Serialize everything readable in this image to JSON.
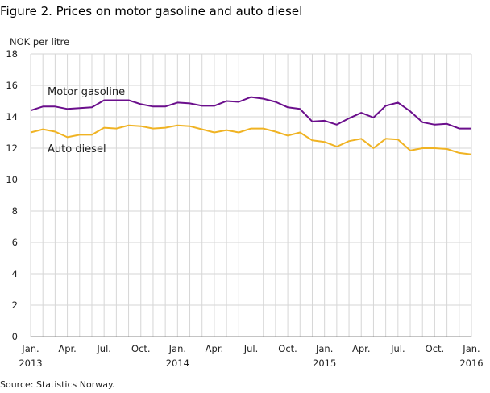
{
  "title": "Figure 2. Prices on motor gasoline and auto diesel",
  "source": "Source: Statistics Norway.",
  "chart_data": {
    "type": "line",
    "title": "Figure 2. Prices on motor gasoline and auto diesel",
    "ylabel": "NOK per litre",
    "xlabel": "",
    "ylim": [
      0,
      18
    ],
    "yticks": [
      0,
      2,
      4,
      6,
      8,
      10,
      12,
      14,
      16,
      18
    ],
    "x_start": "Jan. 2013",
    "x_end": "Jan. 2016",
    "xtick_labels": [
      "Jan.",
      "Apr.",
      "Jul.",
      "Oct.",
      "Jan.",
      "Apr.",
      "Jul.",
      "Oct.",
      "Jan.",
      "Apr.",
      "Jul.",
      "Oct.",
      "Jan."
    ],
    "year_labels": [
      "2013",
      "2014",
      "2015",
      "2016"
    ],
    "grid": true,
    "series": [
      {
        "name": "Motor gasoline",
        "color": "#6b0f8c",
        "values": [
          14.4,
          14.65,
          14.65,
          14.5,
          14.55,
          14.6,
          15.05,
          15.05,
          15.05,
          14.8,
          14.65,
          14.65,
          14.9,
          14.85,
          14.7,
          14.7,
          15.0,
          14.95,
          15.25,
          15.15,
          14.95,
          14.6,
          14.5,
          13.7,
          13.75,
          13.5,
          13.9,
          14.25,
          13.95,
          14.7,
          14.9,
          14.35,
          13.65,
          13.5,
          13.55,
          13.25,
          13.25
        ]
      },
      {
        "name": "Auto diesel",
        "color": "#f0b323",
        "values": [
          13.0,
          13.2,
          13.05,
          12.7,
          12.85,
          12.85,
          13.3,
          13.25,
          13.45,
          13.4,
          13.25,
          13.3,
          13.45,
          13.4,
          13.2,
          13.0,
          13.15,
          13.0,
          13.25,
          13.25,
          13.05,
          12.8,
          13.0,
          12.5,
          12.4,
          12.1,
          12.45,
          12.6,
          12.0,
          12.6,
          12.55,
          11.85,
          12.0,
          12.0,
          11.95,
          11.7,
          11.6
        ]
      }
    ]
  }
}
